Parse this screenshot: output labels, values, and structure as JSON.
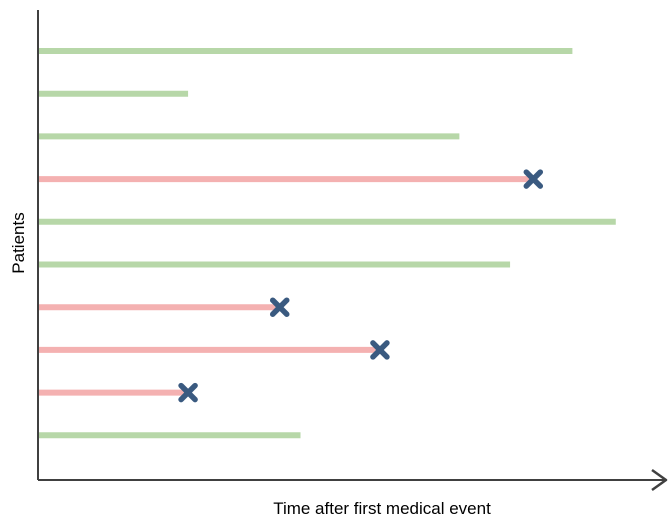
{
  "chart_data": {
    "type": "timeline",
    "xlabel": "Time after first medical event",
    "ylabel": "Patients",
    "xlim": [
      0,
      100
    ],
    "colors": {
      "censored": "#b7d7a8",
      "event": "#f4b1b1",
      "event_marker": "#3a5a80",
      "axis": "#404040"
    },
    "patients": [
      {
        "duration": 87.3,
        "event": false
      },
      {
        "duration": 24.4,
        "event": false
      },
      {
        "duration": 68.8,
        "event": false
      },
      {
        "duration": 80.9,
        "event": true
      },
      {
        "duration": 94.4,
        "event": false
      },
      {
        "duration": 77.1,
        "event": false
      },
      {
        "duration": 39.4,
        "event": true
      },
      {
        "duration": 55.8,
        "event": true
      },
      {
        "duration": 24.4,
        "event": true
      },
      {
        "duration": 42.8,
        "event": false
      }
    ]
  }
}
